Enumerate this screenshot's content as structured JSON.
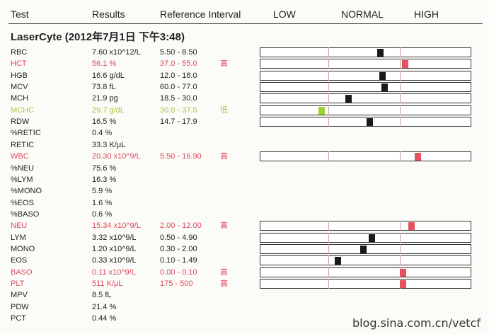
{
  "headers": {
    "test": "Test",
    "results": "Results",
    "reference": "Reference Interval",
    "low": "LOW",
    "normal": "NORMAL",
    "high": "HIGH"
  },
  "title": "LaserCyte (2012年7月1日 下午3:48)",
  "rows": [
    {
      "test": "RBC",
      "result": "7.60 x10^12/L",
      "ref": "5.50 - 8.50",
      "flag": "",
      "status": "normal",
      "bar": true,
      "marker": 0.57
    },
    {
      "test": "HCT",
      "result": "56.1 %",
      "ref": "37.0 - 55.0",
      "flag": "高",
      "status": "high",
      "bar": true,
      "marker": 0.69
    },
    {
      "test": "HGB",
      "result": "16.6 g/dL",
      "ref": "12.0 - 18.0",
      "flag": "",
      "status": "normal",
      "bar": true,
      "marker": 0.58
    },
    {
      "test": "MCV",
      "result": "73.8 fL",
      "ref": "60.0 - 77.0",
      "flag": "",
      "status": "normal",
      "bar": true,
      "marker": 0.59
    },
    {
      "test": "MCH",
      "result": "21.9 pg",
      "ref": "18.5 - 30.0",
      "flag": "",
      "status": "normal",
      "bar": true,
      "marker": 0.42
    },
    {
      "test": "MCHC",
      "result": "29.7 g/dL",
      "ref": "30.0 - 37.5",
      "flag": "低",
      "status": "low",
      "bar": true,
      "marker": 0.29
    },
    {
      "test": "RDW",
      "result": "16.5 %",
      "ref": "14.7 - 17.9",
      "flag": "",
      "status": "normal",
      "bar": true,
      "marker": 0.52
    },
    {
      "test": "%RETIC",
      "result": "0.4 %",
      "ref": "",
      "flag": "",
      "status": "normal",
      "bar": false
    },
    {
      "test": "RETIC",
      "result": "33.3 K/μL",
      "ref": "",
      "flag": "",
      "status": "normal",
      "bar": false
    },
    {
      "test": "WBC",
      "result": "20.30 x10^9/L",
      "ref": "5.50 - 16.90",
      "flag": "高",
      "status": "high",
      "bar": true,
      "marker": 0.75
    },
    {
      "test": "%NEU",
      "result": "75.6 %",
      "ref": "",
      "flag": "",
      "status": "normal",
      "bar": false
    },
    {
      "test": "%LYM",
      "result": "16.3 %",
      "ref": "",
      "flag": "",
      "status": "normal",
      "bar": false
    },
    {
      "test": "%MONO",
      "result": "5.9 %",
      "ref": "",
      "flag": "",
      "status": "normal",
      "bar": false
    },
    {
      "test": "%EOS",
      "result": "1.6 %",
      "ref": "",
      "flag": "",
      "status": "normal",
      "bar": false
    },
    {
      "test": "%BASO",
      "result": "0.6 %",
      "ref": "",
      "flag": "",
      "status": "normal",
      "bar": false
    },
    {
      "test": "NEU",
      "result": "15.34 x10^9/L",
      "ref": "2.00 - 12.00",
      "flag": "高",
      "status": "high",
      "bar": true,
      "marker": 0.72
    },
    {
      "test": "LYM",
      "result": "3.32 x10^9/L",
      "ref": "0.50 - 4.90",
      "flag": "",
      "status": "normal",
      "bar": true,
      "marker": 0.53
    },
    {
      "test": "MONO",
      "result": "1.20 x10^9/L",
      "ref": "0.30 - 2.00",
      "flag": "",
      "status": "normal",
      "bar": true,
      "marker": 0.49
    },
    {
      "test": "EOS",
      "result": "0.33 x10^9/L",
      "ref": "0.10 - 1.49",
      "flag": "",
      "status": "normal",
      "bar": true,
      "marker": 0.37
    },
    {
      "test": "BASO",
      "result": "0.11 x10^9/L",
      "ref": "0.00 - 0.10",
      "flag": "高",
      "status": "high",
      "bar": true,
      "marker": 0.68
    },
    {
      "test": "PLT",
      "result": "511 K/μL",
      "ref": "175 - 500",
      "flag": "高",
      "status": "high",
      "bar": true,
      "marker": 0.68
    },
    {
      "test": "MPV",
      "result": "8.5 fL",
      "ref": "",
      "flag": "",
      "status": "normal",
      "bar": false
    },
    {
      "test": "PDW",
      "result": "21.4 %",
      "ref": "",
      "flag": "",
      "status": "normal",
      "bar": false
    },
    {
      "test": "PCT",
      "result": "0.44 %",
      "ref": "",
      "flag": "",
      "status": "normal",
      "bar": false
    }
  ],
  "watermark": "blog.sina.com.cn/vetcf"
}
